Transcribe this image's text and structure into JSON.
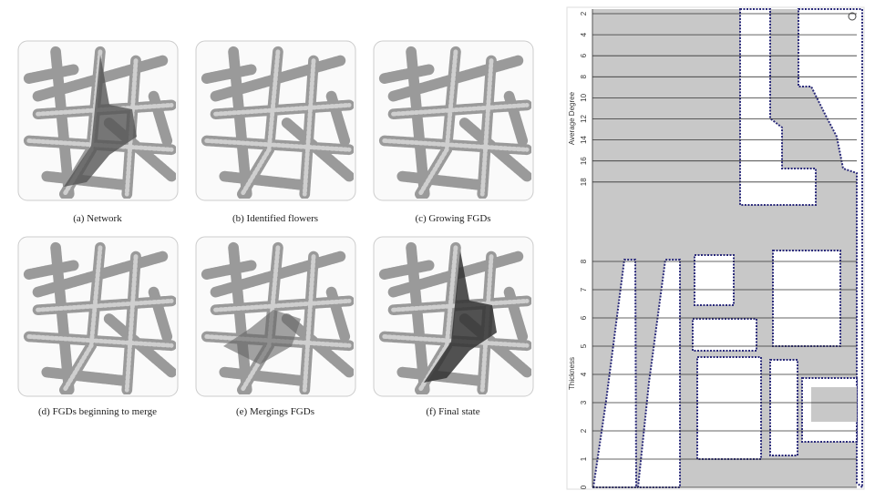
{
  "figure": {
    "panels": [
      {
        "caption": "(a) Network"
      },
      {
        "caption": "(b) Identified flowers"
      },
      {
        "caption": "(c) Growing FGDs"
      },
      {
        "caption": "(d) FGDs beginning to merge"
      },
      {
        "caption": "(e) Mergings FGDs"
      },
      {
        "caption": "(f) Final state"
      }
    ],
    "degree_axis": {
      "label": "Average Degree",
      "ticks": [
        2,
        4,
        6,
        8,
        10,
        12,
        14,
        16,
        18
      ]
    },
    "thickness_axis": {
      "label": "Thickness",
      "ticks": [
        8,
        7,
        6,
        5,
        4,
        3,
        2,
        1,
        0
      ]
    }
  }
}
